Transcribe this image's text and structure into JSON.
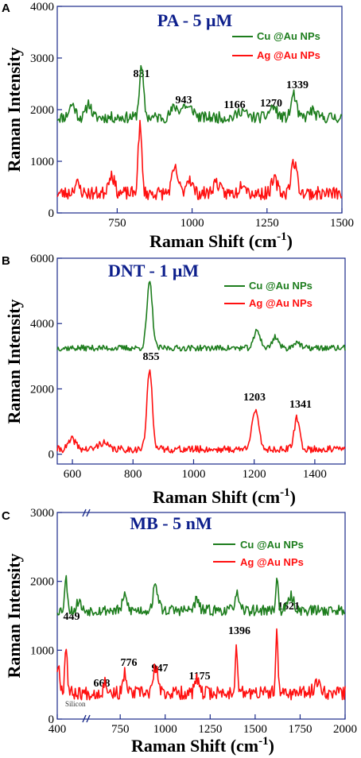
{
  "colors": {
    "cu": "#1d7d1d",
    "ag": "#ff1010",
    "title": "#0d1f8c",
    "frame": "#1a2a8a"
  },
  "chart_data": [
    {
      "panel": "A",
      "type": "line",
      "title": "PA - 5 μM",
      "xlabel": "Raman Shift (cm",
      "xlabel_sup": "-1",
      "ylabel": "Raman Intensity",
      "xlim": [
        550,
        1500
      ],
      "ylim": [
        0,
        4000
      ],
      "xticks": [
        750,
        1000,
        1250,
        1500
      ],
      "xtick_labels": [
        "750",
        "1000",
        "1250",
        "1500"
      ],
      "yticks": [
        0,
        1000,
        2000,
        3000,
        4000
      ],
      "ytick_labels": [
        "0",
        "1000",
        "2000",
        "3000",
        "4000"
      ],
      "legend": [
        "Cu @Au NPs",
        "Ag @Au NPs"
      ],
      "series": [
        {
          "name": "Cu @Au NPs",
          "color": "#1d7d1d",
          "baseline": 1850,
          "noise": 110,
          "seed": 11,
          "peaks": [
            [
              600,
              250,
              10
            ],
            [
              655,
              280,
              8
            ],
            [
              831,
              950,
              7
            ],
            [
              943,
              200,
              12
            ],
            [
              975,
              220,
              10
            ],
            [
              1000,
              150,
              10
            ],
            [
              1166,
              140,
              12
            ],
            [
              1270,
              200,
              12
            ],
            [
              1339,
              450,
              8
            ],
            [
              1400,
              130,
              10
            ]
          ]
        },
        {
          "name": "Ag @Au NPs",
          "color": "#ff1010",
          "baseline": 380,
          "noise": 130,
          "seed": 23,
          "peaks": [
            [
              615,
              180,
              10
            ],
            [
              730,
              380,
              10
            ],
            [
              826,
              1300,
              6
            ],
            [
              943,
              460,
              10
            ],
            [
              990,
              300,
              10
            ],
            [
              1080,
              220,
              10
            ],
            [
              1170,
              240,
              10
            ],
            [
              1275,
              250,
              10
            ],
            [
              1340,
              600,
              10
            ]
          ]
        }
      ],
      "annotations": [
        "831",
        "943",
        "1166",
        "1270",
        "1339"
      ]
    },
    {
      "panel": "B",
      "type": "line",
      "title": "DNT - 1 μM",
      "xlabel": "Raman Shift (cm",
      "xlabel_sup": "-1",
      "ylabel": "Raman Intensity",
      "xlim": [
        550,
        1500
      ],
      "ylim": [
        -300,
        6000
      ],
      "xticks": [
        600,
        800,
        1000,
        1200,
        1400
      ],
      "xtick_labels": [
        "600",
        "800",
        "1000",
        "1200",
        "1400"
      ],
      "yticks": [
        0,
        2000,
        4000,
        6000
      ],
      "ytick_labels": [
        "0",
        "2000",
        "4000",
        "6000"
      ],
      "legend": [
        "Cu @Au NPs",
        "Ag @Au NPs"
      ],
      "series": [
        {
          "name": "Cu @Au NPs",
          "color": "#1d7d1d",
          "baseline": 3250,
          "noise": 90,
          "seed": 37,
          "peaks": [
            [
              855,
              2000,
              9
            ],
            [
              1210,
              550,
              10
            ],
            [
              1270,
              350,
              10
            ],
            [
              1340,
              200,
              10
            ]
          ]
        },
        {
          "name": "Ag @Au NPs",
          "color": "#ff1010",
          "baseline": 150,
          "noise": 110,
          "seed": 41,
          "peaks": [
            [
              600,
              300,
              12
            ],
            [
              700,
              200,
              15
            ],
            [
              855,
              2400,
              9
            ],
            [
              1203,
              1150,
              12
            ],
            [
              1341,
              950,
              9
            ]
          ]
        }
      ],
      "annotations": [
        "855",
        "1203",
        "1341"
      ]
    },
    {
      "panel": "C",
      "type": "line",
      "title": "MB - 5 nM",
      "xlabel": "Raman Shift (cm",
      "xlabel_sup": "-1",
      "ylabel": "Raman Intensity",
      "xlim": [
        400,
        2000
      ],
      "ylim": [
        0,
        3000
      ],
      "xticks": [
        400,
        750,
        1000,
        1250,
        1500,
        1750,
        2000
      ],
      "xtick_labels": [
        "400",
        "750",
        "1000",
        "1250",
        "1500",
        "1750",
        "2000"
      ],
      "yticks": [
        0,
        1000,
        2000,
        3000
      ],
      "ytick_labels": [
        "0",
        "1000",
        "2000",
        "3000"
      ],
      "axis_break": true,
      "legend": [
        "Cu @Au NPs",
        "Ag @Au NPs"
      ],
      "series": [
        {
          "name": "Cu @Au NPs",
          "color": "#1d7d1d",
          "baseline": 1580,
          "noise": 80,
          "seed": 53,
          "peaks": [
            [
              449,
              450,
              8
            ],
            [
              520,
              150,
              10
            ],
            [
              776,
              200,
              12
            ],
            [
              947,
              350,
              14
            ],
            [
              1175,
              150,
              12
            ],
            [
              1396,
              250,
              10
            ],
            [
              1621,
              450,
              7
            ],
            [
              1700,
              200,
              15
            ]
          ]
        },
        {
          "name": "Ag @Au NPs",
          "color": "#ff1010",
          "baseline": 380,
          "noise": 100,
          "seed": 67,
          "peaks": [
            [
              405,
              400,
              10
            ],
            [
              449,
              700,
              7
            ],
            [
              668,
              170,
              10
            ],
            [
              776,
              300,
              8
            ],
            [
              947,
              380,
              12
            ],
            [
              1175,
              200,
              10
            ],
            [
              1396,
              650,
              7
            ],
            [
              1621,
              850,
              6
            ],
            [
              1850,
              150,
              20
            ]
          ]
        }
      ],
      "annotations": [
        "449",
        "668",
        "776",
        "947",
        "1175",
        "1396",
        "1621"
      ],
      "note": "Silicon"
    }
  ]
}
